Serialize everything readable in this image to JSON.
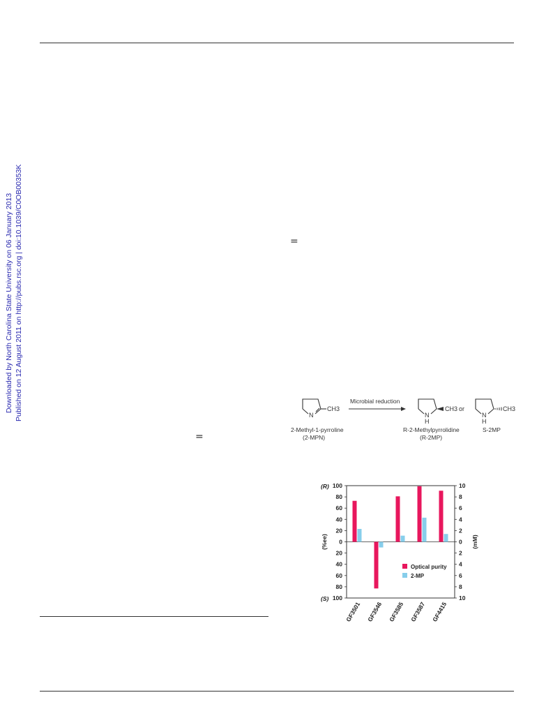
{
  "sidebar": {
    "line1": "Downloaded by North Carolina State University on 06 January 2013",
    "line2": "Published on 12 August 2011 on http://pubs.rsc.org | doi:10.1039/C0OB00353K"
  },
  "equals_glyph": "=",
  "scheme": {
    "substrate_label": "2-Methyl-1-pyrroline",
    "substrate_abbrev": "(2-MPN)",
    "substrate_n": "N",
    "substrate_ch3": "CH3",
    "arrow_label": "Microbial reduction",
    "product_r_label": "R-2-Methylpyrrolidine",
    "product_r_abbrev": "(R-2MP)",
    "product_nh": "N",
    "product_h": "H",
    "product_ch3": "CH3",
    "or_label": "or",
    "product_s_label": "S-2MP"
  },
  "chart_data": {
    "type": "bar",
    "categories": [
      "GF3501",
      "GF3546",
      "GF3585",
      "GF3587",
      "GF4415"
    ],
    "series": [
      {
        "name": "Optical purity",
        "values": [
          73,
          -83,
          81,
          99,
          91
        ]
      },
      {
        "name": "2-MP",
        "values": [
          2.3,
          -1.0,
          1.1,
          4.3,
          1.4
        ]
      }
    ],
    "left_axis": {
      "label": "(%ee)",
      "top_marker": "(R)",
      "bottom_marker": "(S)",
      "ticks": [
        "100",
        "80",
        "60",
        "40",
        "20",
        "0",
        "20",
        "40",
        "60",
        "80",
        "100"
      ],
      "range": [
        -100,
        100
      ]
    },
    "right_axis": {
      "label": "(mM)",
      "ticks": [
        "10",
        "8",
        "6",
        "4",
        "2",
        "0",
        "2",
        "4",
        "6",
        "8",
        "10"
      ],
      "range": [
        -10,
        10
      ]
    },
    "legend_position": "lower-right",
    "colors": {
      "optical_purity": "#e8175d",
      "two_mp": "#87ceeb"
    }
  }
}
